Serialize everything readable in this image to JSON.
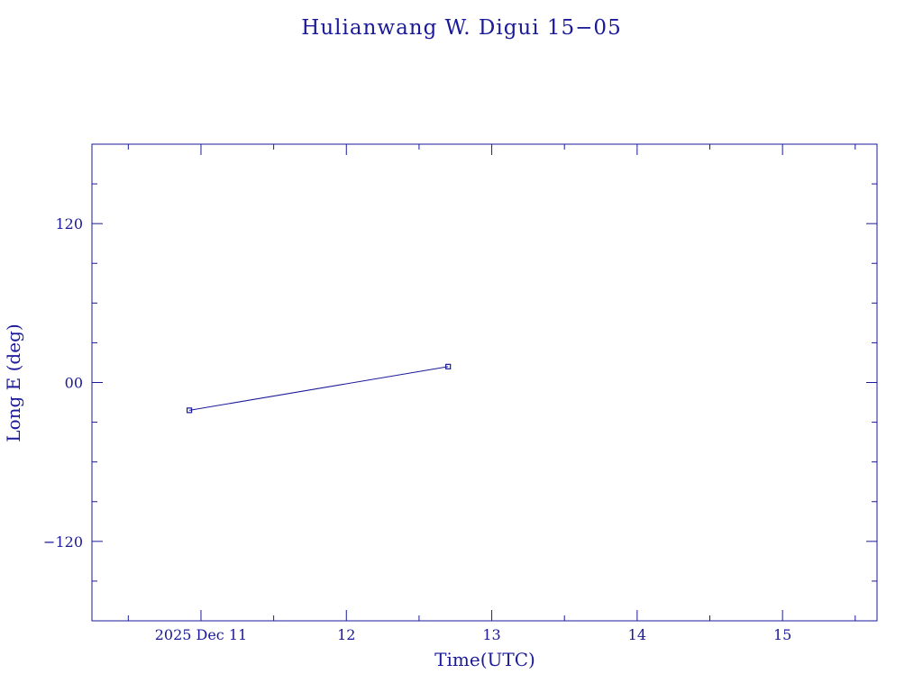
{
  "chart_data": {
    "type": "line",
    "title": "Hulianwang W. Digui 15−05",
    "xlabel": "Time(UTC)",
    "ylabel": "Long E (deg)",
    "x_unit": "day of Dec 2025",
    "xlim": [
      10.25,
      15.65
    ],
    "ylim": [
      -180,
      180
    ],
    "x_ticks": [
      {
        "value": 11,
        "label": "2025 Dec 11"
      },
      {
        "value": 12,
        "label": "12"
      },
      {
        "value": 13,
        "label": "13"
      },
      {
        "value": 14,
        "label": "14"
      },
      {
        "value": 15,
        "label": "15"
      }
    ],
    "y_ticks": [
      {
        "value": 120,
        "label": "120"
      },
      {
        "value": 0,
        "label": "00"
      },
      {
        "value": -120,
        "label": "−120"
      }
    ],
    "series": [
      {
        "x": [
          10.92,
          12.7
        ],
        "y": [
          -21,
          12
        ]
      }
    ],
    "grid": false,
    "color": "#1a1a99"
  }
}
